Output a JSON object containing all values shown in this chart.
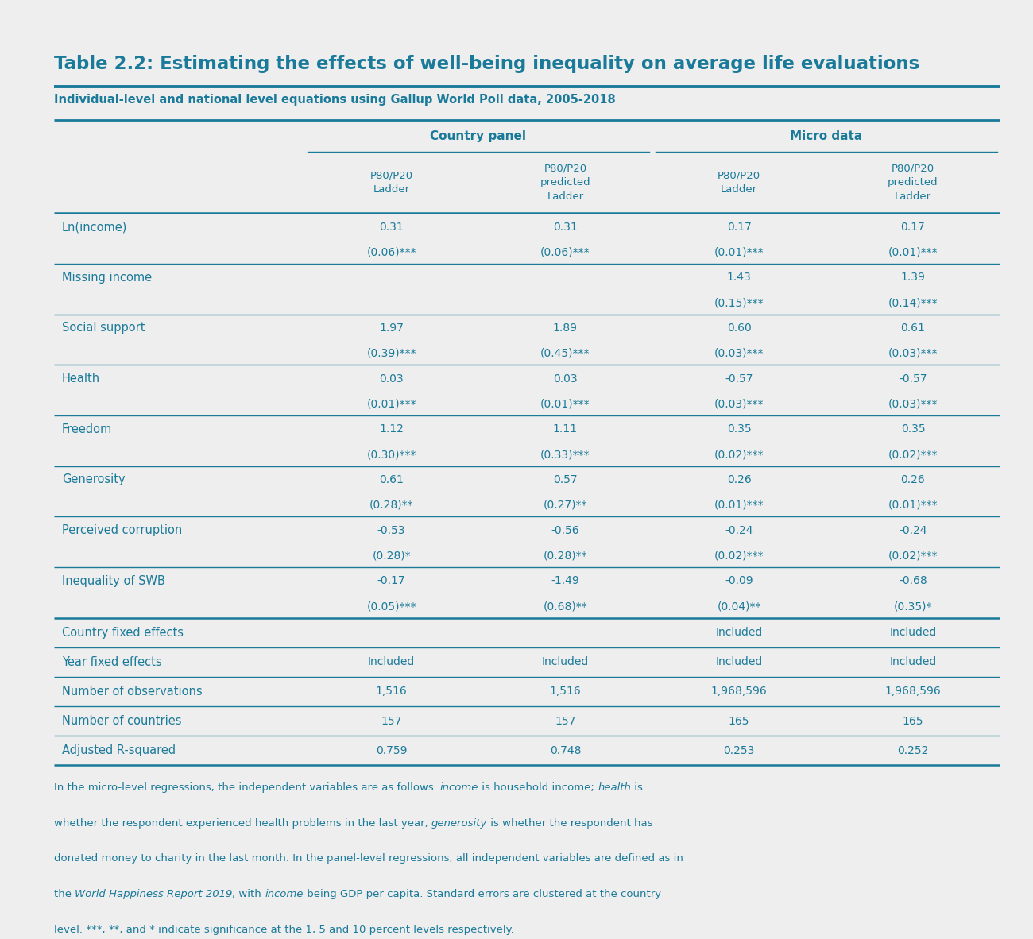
{
  "title": "Table 2.2: Estimating the effects of well-being inequality on average life evaluations",
  "subtitle": "Individual-level and national level equations using Gallup World Poll data, 2005-2018",
  "bg_color": "#eeeeee",
  "tc": "#1a7a9a",
  "header_group1": "Country panel",
  "header_group2": "Micro data",
  "col_headers": [
    "P80/P20\nLadder",
    "P80/P20\npredicted\nLadder",
    "P80/P20\nLadder",
    "P80/P20\npredicted\nLadder"
  ],
  "row_labels": [
    "Ln(income)",
    "",
    "Missing income",
    "",
    "Social support",
    "",
    "Health",
    "",
    "Freedom",
    "",
    "Generosity",
    "",
    "Perceived corruption",
    "",
    "Inequality of SWB",
    "",
    "Country fixed effects",
    "Year fixed effects",
    "Number of observations",
    "Number of countries",
    "Adjusted R-squared"
  ],
  "table_data": [
    [
      "0.31",
      "0.31",
      "0.17",
      "0.17"
    ],
    [
      "(0.06)***",
      "(0.06)***",
      "(0.01)***",
      "(0.01)***"
    ],
    [
      "",
      "",
      "1.43",
      "1.39"
    ],
    [
      "",
      "",
      "(0.15)***",
      "(0.14)***"
    ],
    [
      "1.97",
      "1.89",
      "0.60",
      "0.61"
    ],
    [
      "(0.39)***",
      "(0.45)***",
      "(0.03)***",
      "(0.03)***"
    ],
    [
      "0.03",
      "0.03",
      "-0.57",
      "-0.57"
    ],
    [
      "(0.01)***",
      "(0.01)***",
      "(0.03)***",
      "(0.03)***"
    ],
    [
      "1.12",
      "1.11",
      "0.35",
      "0.35"
    ],
    [
      "(0.30)***",
      "(0.33)***",
      "(0.02)***",
      "(0.02)***"
    ],
    [
      "0.61",
      "0.57",
      "0.26",
      "0.26"
    ],
    [
      "(0.28)**",
      "(0.27)**",
      "(0.01)***",
      "(0.01)***"
    ],
    [
      "-0.53",
      "-0.56",
      "-0.24",
      "-0.24"
    ],
    [
      "(0.28)*",
      "(0.28)**",
      "(0.02)***",
      "(0.02)***"
    ],
    [
      "-0.17",
      "-1.49",
      "-0.09",
      "-0.68"
    ],
    [
      "(0.05)***",
      "(0.68)**",
      "(0.04)**",
      "(0.35)*"
    ],
    [
      "",
      "",
      "Included",
      "Included"
    ],
    [
      "Included",
      "Included",
      "Included",
      "Included"
    ],
    [
      "1,516",
      "1,516",
      "1,968,596",
      "1,968,596"
    ],
    [
      "157",
      "157",
      "165",
      "165"
    ],
    [
      "0.759",
      "0.748",
      "0.253",
      "0.252"
    ]
  ],
  "footnote_lines": [
    [
      [
        "In the micro-level regressions, the independent variables are as follows: ",
        false
      ],
      [
        "income",
        true
      ],
      [
        " is household income; ",
        false
      ],
      [
        "health",
        true
      ],
      [
        " is",
        false
      ]
    ],
    [
      [
        "whether the respondent experienced health problems in the last year; ",
        false
      ],
      [
        "generosity",
        true
      ],
      [
        " is whether the respondent has",
        false
      ]
    ],
    [
      [
        "donated money to charity in the last month. In the panel-level regressions, all independent variables are defined as in",
        false
      ]
    ],
    [
      [
        "the ",
        false
      ],
      [
        "World Happiness Report 2019",
        true
      ],
      [
        ", with ",
        false
      ],
      [
        "income",
        true
      ],
      [
        " being GDP per capita. Standard errors are clustered at the country",
        false
      ]
    ],
    [
      [
        "level. ***, **, and * indicate significance at the 1, 5 and 10 percent levels respectively.",
        false
      ]
    ]
  ]
}
